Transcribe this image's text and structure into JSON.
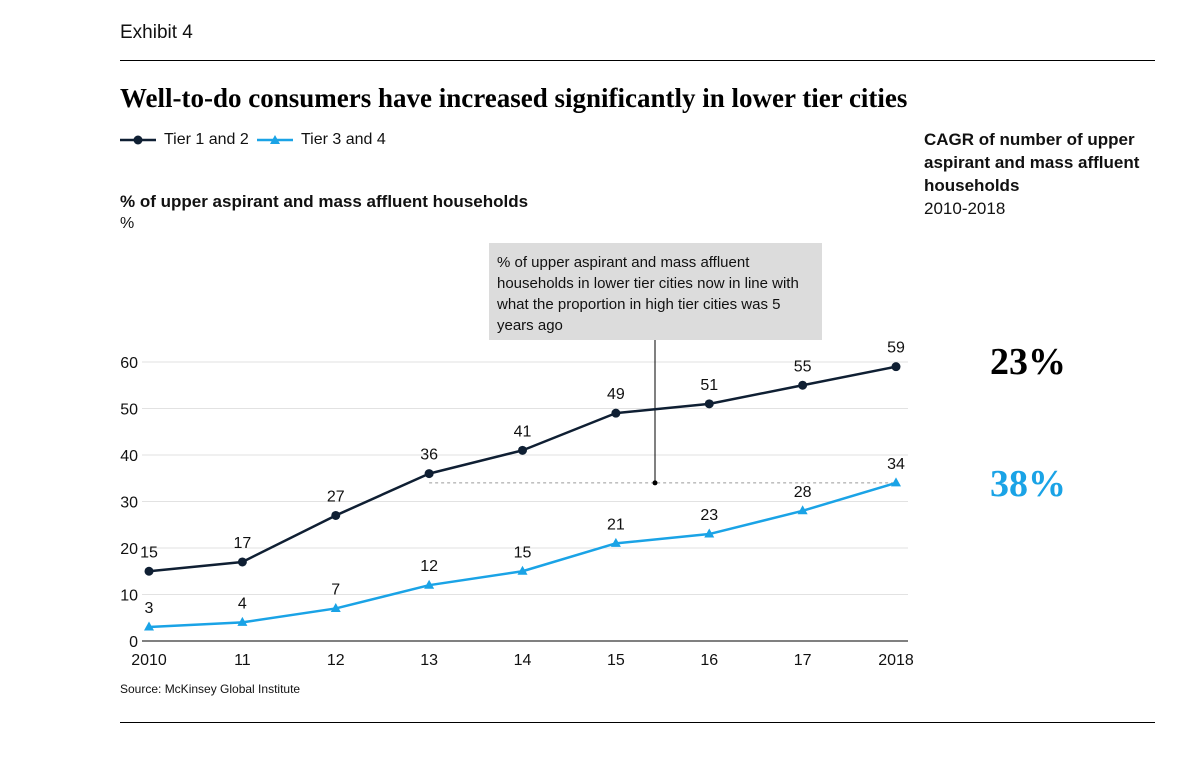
{
  "exhibit_label": "Exhibit 4",
  "headline": "Well-to-do consumers have increased significantly in lower tier cities",
  "legend": [
    {
      "name": "Tier 1 and 2",
      "color": "#0f1f33",
      "marker": "circle"
    },
    {
      "name": "Tier 3 and 4",
      "color": "#1aa3e6",
      "marker": "triangle"
    }
  ],
  "cagr": {
    "title": "CAGR of number of upper aspirant and mass affluent households",
    "period": "2010-2018",
    "tier12": "23%",
    "tier34": "38%"
  },
  "callout_text": "% of upper aspirant and mass affluent households in lower tier cities now in line with what the proportion in high tier cities was 5 years ago",
  "source": "Source: McKinsey Global Institute",
  "chart_data": {
    "type": "line",
    "title": "",
    "ylabel": "% of upper aspirant and mass affluent households",
    "yunit": "%",
    "xlabel": "",
    "categories": [
      "2010",
      "11",
      "12",
      "13",
      "14",
      "15",
      "16",
      "17",
      "2018"
    ],
    "series": [
      {
        "name": "Tier 1 and 2",
        "color": "#0f1f33",
        "marker": "circle",
        "values": [
          15,
          17,
          27,
          36,
          41,
          49,
          51,
          55,
          59
        ]
      },
      {
        "name": "Tier 3 and 4",
        "color": "#1aa3e6",
        "marker": "triangle",
        "values": [
          3,
          4,
          7,
          12,
          15,
          21,
          23,
          28,
          34
        ]
      }
    ],
    "yticks": [
      0,
      10,
      20,
      30,
      40,
      50,
      60
    ],
    "ylim": [
      0,
      60
    ],
    "grid": true,
    "reference_line_value": 34
  }
}
